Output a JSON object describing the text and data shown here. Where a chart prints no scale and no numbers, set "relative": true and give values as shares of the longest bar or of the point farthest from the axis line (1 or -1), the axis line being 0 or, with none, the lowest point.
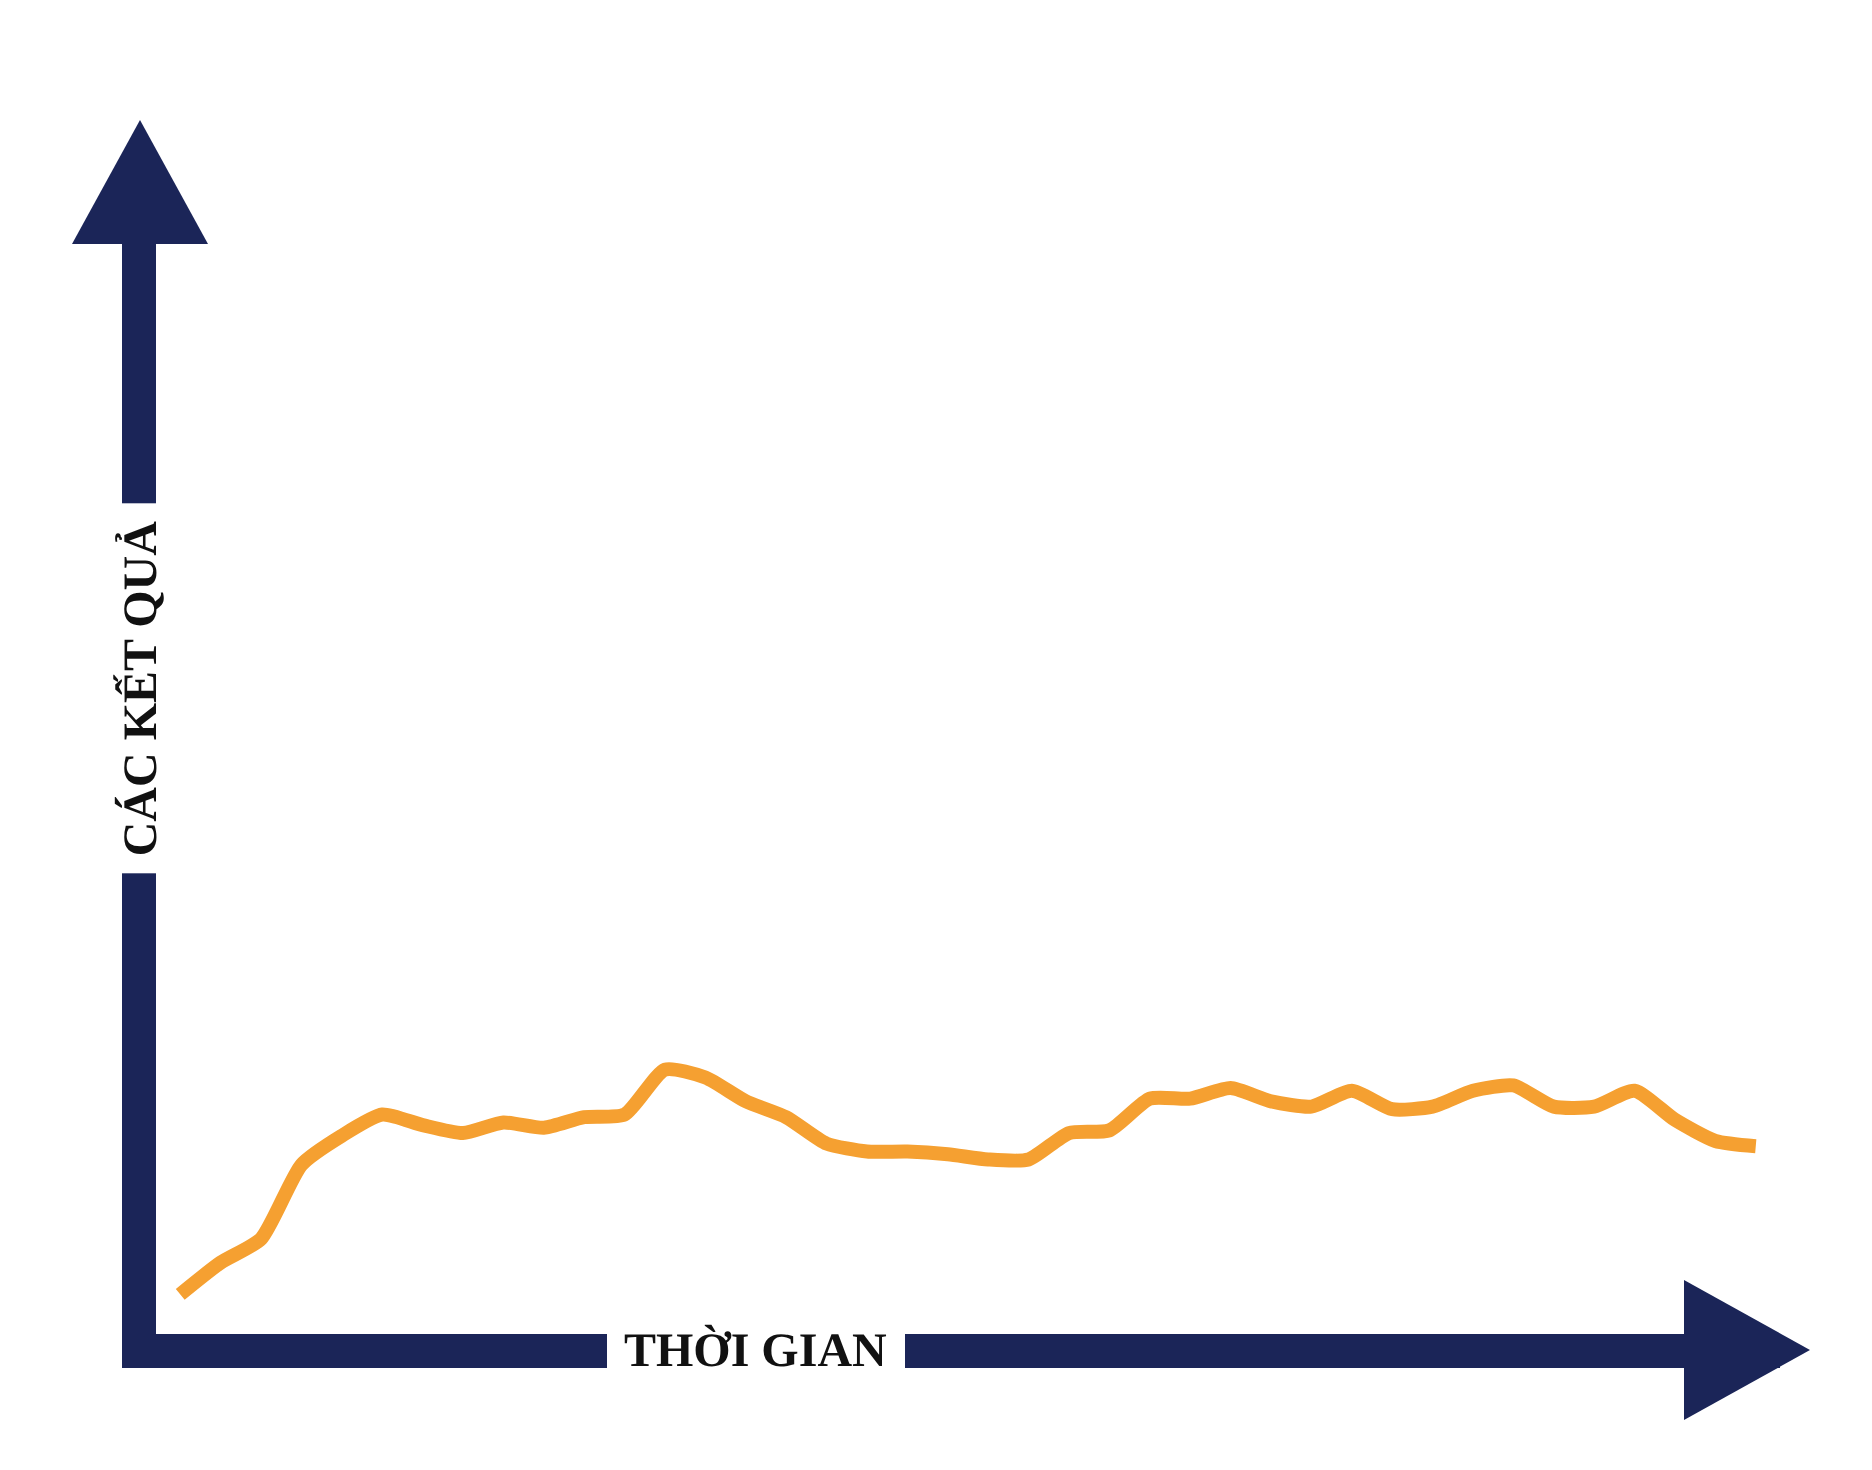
{
  "chart_data": {
    "type": "line",
    "xlabel": "THỜI GIAN",
    "ylabel": "CÁC KẾT QUẢ",
    "relative": true,
    "categories": [
      null,
      null,
      null,
      null,
      null,
      null,
      null,
      null,
      null,
      null,
      null,
      null,
      null,
      null,
      null,
      null,
      null,
      null,
      null,
      null,
      null,
      null,
      null,
      null,
      null,
      null,
      null,
      null,
      null,
      null,
      null,
      null,
      null,
      null,
      null,
      null,
      null,
      null,
      null,
      null
    ],
    "series": [
      {
        "color": "#f5a031",
        "values": [
          0.15,
          0.27,
          0.36,
          0.64,
          0.75,
          0.83,
          0.79,
          0.76,
          0.8,
          0.78,
          0.82,
          0.83,
          1,
          0.97,
          0.88,
          0.82,
          0.72,
          0.69,
          0.69,
          0.68,
          0.66,
          0.66,
          0.76,
          0.77,
          0.89,
          0.89,
          0.93,
          0.88,
          0.86,
          0.92,
          0.85,
          0.86,
          0.92,
          0.94,
          0.86,
          0.86,
          0.92,
          0.81,
          0.73,
          0.71
        ]
      }
    ]
  }
}
